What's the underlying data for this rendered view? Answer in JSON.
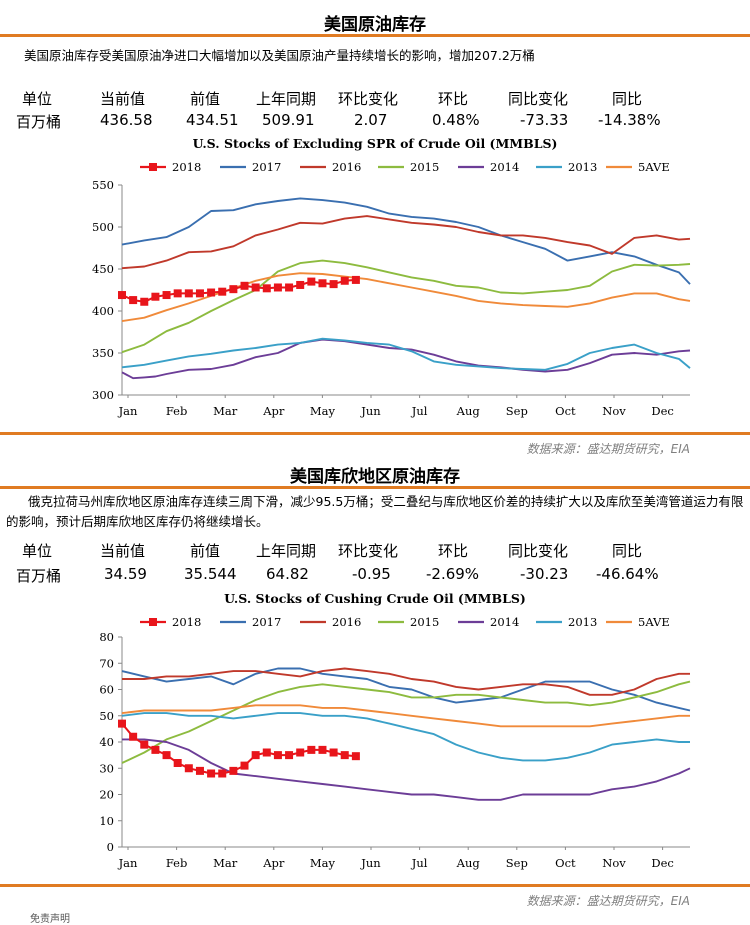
{
  "sections": [
    {
      "title": "美国原油库存",
      "description": "美国原油库存受美国原油净进口大幅增加以及美国原油产量持续增长的影响，增加207.2万桶",
      "stats_header": [
        "单位",
        "当前值",
        "前值",
        "上年同期",
        "环比变化",
        "环比",
        "同比变化",
        "同比"
      ],
      "stats_values": [
        "百万桶",
        "436.58",
        "434.51",
        "509.91",
        "2.07",
        "0.48%",
        "-73.33",
        "-14.38%"
      ],
      "source": "数据来源：盛达期货研究，EIA"
    },
    {
      "title": "美国库欣地区原油库存",
      "description": "俄克拉荷马州库欣地区原油库存连续三周下滑，减少95.5万桶；受二叠纪与库欣地区价差的持续扩大以及库欣至美湾管道运力有限的影响，预计后期库欣地区库存仍将继续增长。",
      "stats_header": [
        "单位",
        "当前值",
        "前值",
        "上年同期",
        "环比变化",
        "环比",
        "同比变化",
        "同比"
      ],
      "stats_values": [
        "百万桶",
        "34.59",
        "35.544",
        "64.82",
        "-0.95",
        "-2.69%",
        "-30.23",
        "-46.64%"
      ],
      "source": "数据来源：盛达期货研究，EIA"
    }
  ],
  "footer": "免责声明",
  "chart_data": [
    {
      "type": "line",
      "title": "U.S.  Stocks of Excluding SPR of Crude Oil (MMBLS)",
      "x_tick_labels": [
        "Jan",
        "Feb",
        "Mar",
        "Apr",
        "May",
        "Jun",
        "Jul",
        "Aug",
        "Sep",
        "Oct",
        "Nov",
        "Dec"
      ],
      "xlim": [
        1,
        52
      ],
      "ylim": [
        300,
        550
      ],
      "y_ticks": [
        300,
        350,
        400,
        450,
        500,
        550
      ],
      "legend_position": "top",
      "series": [
        {
          "name": "2018",
          "color": "#e8151b",
          "marker": "square",
          "x": [
            1,
            2,
            3,
            4,
            5,
            6,
            7,
            8,
            9,
            10,
            11,
            12,
            13,
            14,
            15,
            16,
            17,
            18,
            19,
            20,
            21,
            22
          ],
          "values": [
            419,
            413,
            411,
            417,
            419,
            421,
            421,
            421,
            422,
            423,
            426,
            430,
            428,
            427,
            428,
            428,
            431,
            435,
            433,
            432,
            436,
            437
          ]
        },
        {
          "name": "2017",
          "color": "#3a6fb0",
          "x": [
            1,
            3,
            5,
            7,
            9,
            11,
            13,
            15,
            17,
            19,
            21,
            23,
            25,
            27,
            29,
            31,
            33,
            35,
            37,
            39,
            41,
            43,
            45,
            47,
            49,
            51,
            52
          ],
          "values": [
            479,
            484,
            488,
            500,
            519,
            520,
            527,
            531,
            534,
            532,
            529,
            524,
            516,
            512,
            510,
            506,
            500,
            490,
            482,
            474,
            460,
            465,
            470,
            465,
            455,
            446,
            432
          ]
        },
        {
          "name": "2016",
          "color": "#c0392b",
          "x": [
            1,
            3,
            5,
            7,
            9,
            11,
            13,
            15,
            17,
            19,
            21,
            23,
            25,
            27,
            29,
            31,
            33,
            35,
            37,
            39,
            41,
            43,
            45,
            47,
            49,
            51,
            52
          ],
          "values": [
            451,
            453,
            460,
            470,
            471,
            477,
            490,
            497,
            505,
            504,
            510,
            513,
            509,
            505,
            503,
            500,
            494,
            490,
            490,
            487,
            482,
            478,
            468,
            487,
            490,
            485,
            486
          ]
        },
        {
          "name": "2015",
          "color": "#8dbb3f",
          "x": [
            1,
            3,
            5,
            7,
            9,
            11,
            13,
            15,
            17,
            19,
            21,
            23,
            25,
            27,
            29,
            31,
            33,
            35,
            37,
            39,
            41,
            43,
            45,
            47,
            49,
            51,
            52
          ],
          "values": [
            351,
            360,
            376,
            386,
            400,
            413,
            425,
            447,
            457,
            460,
            457,
            452,
            446,
            440,
            436,
            430,
            428,
            422,
            421,
            423,
            425,
            430,
            447,
            455,
            454,
            455,
            456
          ]
        },
        {
          "name": "2014",
          "color": "#6c3d97",
          "x": [
            1,
            2,
            3,
            4,
            5,
            7,
            9,
            11,
            13,
            15,
            17,
            19,
            21,
            23,
            25,
            27,
            29,
            31,
            33,
            35,
            37,
            39,
            41,
            43,
            45,
            47,
            49,
            51,
            52
          ],
          "values": [
            327,
            320,
            321,
            322,
            325,
            330,
            331,
            336,
            345,
            350,
            362,
            366,
            364,
            360,
            356,
            354,
            348,
            340,
            335,
            333,
            330,
            328,
            330,
            338,
            348,
            350,
            348,
            352,
            353
          ]
        },
        {
          "name": "2013",
          "color": "#3aa0c8",
          "x": [
            1,
            3,
            5,
            7,
            9,
            11,
            13,
            15,
            17,
            19,
            21,
            23,
            25,
            27,
            29,
            31,
            33,
            35,
            37,
            39,
            41,
            43,
            45,
            47,
            49,
            51,
            52
          ],
          "values": [
            333,
            336,
            341,
            346,
            349,
            353,
            356,
            360,
            362,
            367,
            365,
            362,
            360,
            352,
            340,
            336,
            334,
            332,
            331,
            330,
            337,
            350,
            356,
            360,
            350,
            343,
            332
          ]
        },
        {
          "name": "5AVE",
          "color": "#f08a3a",
          "x": [
            1,
            3,
            5,
            7,
            9,
            11,
            13,
            15,
            17,
            19,
            21,
            23,
            25,
            27,
            29,
            31,
            33,
            35,
            37,
            39,
            41,
            43,
            45,
            47,
            49,
            51,
            52
          ],
          "values": [
            388,
            392,
            401,
            409,
            418,
            427,
            436,
            442,
            445,
            444,
            441,
            438,
            433,
            428,
            423,
            418,
            412,
            409,
            407,
            406,
            405,
            409,
            416,
            421,
            421,
            414,
            412
          ]
        }
      ]
    },
    {
      "type": "line",
      "title": "U.S.  Stocks of Cushing  Crude Oil (MMBLS)",
      "x_tick_labels": [
        "Jan",
        "Feb",
        "Mar",
        "Apr",
        "May",
        "Jun",
        "Jul",
        "Aug",
        "Sep",
        "Oct",
        "Nov",
        "Dec"
      ],
      "xlim": [
        1,
        52
      ],
      "ylim": [
        0,
        80
      ],
      "y_ticks": [
        0,
        10,
        20,
        30,
        40,
        50,
        60,
        70,
        80
      ],
      "legend_position": "top",
      "series": [
        {
          "name": "2018",
          "color": "#e8151b",
          "marker": "square",
          "x": [
            1,
            2,
            3,
            4,
            5,
            6,
            7,
            8,
            9,
            10,
            11,
            12,
            13,
            14,
            15,
            16,
            17,
            18,
            19,
            20,
            21,
            22
          ],
          "values": [
            47,
            42,
            39,
            37,
            35,
            32,
            30,
            29,
            28,
            28,
            29,
            31,
            35,
            36,
            35,
            35,
            36,
            37,
            37,
            36,
            35,
            34.6
          ]
        },
        {
          "name": "2017",
          "color": "#3a6fb0",
          "x": [
            1,
            3,
            5,
            7,
            9,
            11,
            13,
            15,
            17,
            19,
            21,
            23,
            25,
            27,
            29,
            31,
            33,
            35,
            37,
            39,
            41,
            43,
            45,
            47,
            49,
            51,
            52
          ],
          "values": [
            67,
            65,
            63,
            64,
            65,
            62,
            66,
            68,
            68,
            66,
            65,
            64,
            61,
            60,
            57,
            55,
            56,
            57,
            60,
            63,
            63,
            63,
            60,
            58,
            55,
            53,
            52
          ]
        },
        {
          "name": "2016",
          "color": "#c0392b",
          "x": [
            1,
            3,
            5,
            7,
            9,
            11,
            13,
            15,
            17,
            19,
            21,
            23,
            25,
            27,
            29,
            31,
            33,
            35,
            37,
            39,
            41,
            43,
            45,
            47,
            49,
            51,
            52
          ],
          "values": [
            64,
            64,
            65,
            65,
            66,
            67,
            67,
            66,
            65,
            67,
            68,
            67,
            66,
            64,
            63,
            61,
            60,
            61,
            62,
            62,
            61,
            58,
            58,
            60,
            64,
            66,
            66
          ]
        },
        {
          "name": "2015",
          "color": "#8dbb3f",
          "x": [
            1,
            3,
            5,
            7,
            9,
            11,
            13,
            15,
            17,
            19,
            21,
            23,
            25,
            27,
            29,
            31,
            33,
            35,
            37,
            39,
            41,
            43,
            45,
            47,
            49,
            51,
            52
          ],
          "values": [
            32,
            36,
            41,
            44,
            48,
            52,
            56,
            59,
            61,
            62,
            61,
            60,
            59,
            57,
            57,
            58,
            58,
            57,
            56,
            55,
            55,
            54,
            55,
            57,
            59,
            62,
            63
          ]
        },
        {
          "name": "2014",
          "color": "#6c3d97",
          "x": [
            1,
            3,
            5,
            7,
            9,
            11,
            13,
            15,
            17,
            19,
            21,
            23,
            25,
            27,
            29,
            31,
            33,
            35,
            37,
            39,
            41,
            43,
            45,
            47,
            49,
            51,
            52
          ],
          "values": [
            41,
            41,
            40,
            37,
            32,
            28,
            27,
            26,
            25,
            24,
            23,
            22,
            21,
            20,
            20,
            19,
            18,
            18,
            20,
            20,
            20,
            20,
            22,
            23,
            25,
            28,
            30
          ]
        },
        {
          "name": "2013",
          "color": "#3aa0c8",
          "x": [
            1,
            3,
            5,
            7,
            9,
            11,
            13,
            15,
            17,
            19,
            21,
            23,
            25,
            27,
            29,
            31,
            33,
            35,
            37,
            39,
            41,
            43,
            45,
            47,
            49,
            51,
            52
          ],
          "values": [
            50,
            51,
            51,
            50,
            50,
            49,
            50,
            51,
            51,
            50,
            50,
            49,
            47,
            45,
            43,
            39,
            36,
            34,
            33,
            33,
            34,
            36,
            39,
            40,
            41,
            40,
            40
          ]
        },
        {
          "name": "5AVE",
          "color": "#f08a3a",
          "x": [
            1,
            3,
            5,
            7,
            9,
            11,
            13,
            15,
            17,
            19,
            21,
            23,
            25,
            27,
            29,
            31,
            33,
            35,
            37,
            39,
            41,
            43,
            45,
            47,
            49,
            51,
            52
          ],
          "values": [
            51,
            52,
            52,
            52,
            52,
            53,
            54,
            54,
            54,
            53,
            53,
            52,
            51,
            50,
            49,
            48,
            47,
            46,
            46,
            46,
            46,
            46,
            47,
            48,
            49,
            50,
            50
          ]
        }
      ]
    }
  ]
}
